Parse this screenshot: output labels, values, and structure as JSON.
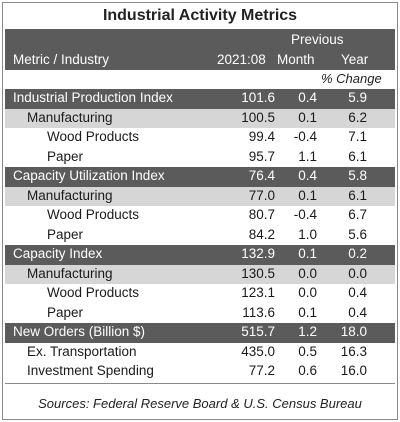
{
  "title": "Industrial Activity Metrics",
  "header": {
    "metric_label": "Metric / Industry",
    "date_label": "2021:08",
    "previous_label": "Previous",
    "month_label": "Month",
    "year_label": "Year",
    "pct_change_label": "% Change"
  },
  "rows": [
    {
      "name": "Industrial Production Index",
      "value": "101.6",
      "month": "0.4",
      "year": "5.9",
      "style": "dark",
      "indent": 0
    },
    {
      "name": "Manufacturing",
      "value": "100.5",
      "month": "0.1",
      "year": "6.2",
      "style": "shade",
      "indent": 1
    },
    {
      "name": "Wood Products",
      "value": "99.4",
      "month": "-0.4",
      "year": "7.1",
      "style": "plain",
      "indent": 2
    },
    {
      "name": "Paper",
      "value": "95.7",
      "month": "1.1",
      "year": "6.1",
      "style": "plain",
      "indent": 2
    },
    {
      "name": "Capacity Utilization Index",
      "value": "76.4",
      "month": "0.4",
      "year": "5.8",
      "style": "dark",
      "indent": 0
    },
    {
      "name": "Manufacturing",
      "value": "77.0",
      "month": "0.1",
      "year": "6.1",
      "style": "shade",
      "indent": 1
    },
    {
      "name": "Wood Products",
      "value": "80.7",
      "month": "-0.4",
      "year": "6.7",
      "style": "plain",
      "indent": 2
    },
    {
      "name": "Paper",
      "value": "84.2",
      "month": "1.0",
      "year": "5.6",
      "style": "plain",
      "indent": 2
    },
    {
      "name": "Capacity Index",
      "value": "132.9",
      "month": "0.1",
      "year": "0.2",
      "style": "dark",
      "indent": 0
    },
    {
      "name": "Manufacturing",
      "value": "130.5",
      "month": "0.0",
      "year": "0.0",
      "style": "shade",
      "indent": 1
    },
    {
      "name": "Wood Products",
      "value": "123.1",
      "month": "0.0",
      "year": "0.4",
      "style": "plain",
      "indent": 2
    },
    {
      "name": "Paper",
      "value": "113.6",
      "month": "0.1",
      "year": "0.4",
      "style": "plain",
      "indent": 2
    },
    {
      "name": "New Orders (Billion $)",
      "value": "515.7",
      "month": "1.2",
      "year": "18.0",
      "style": "dark",
      "indent": 0
    },
    {
      "name": "Ex. Transportation",
      "value": "435.0",
      "month": "0.5",
      "year": "16.3",
      "style": "plain",
      "indent": 1
    },
    {
      "name": "Investment Spending",
      "value": "77.2",
      "month": "0.6",
      "year": "16.0",
      "style": "plain",
      "indent": 1
    }
  ],
  "source": "Sources: Federal Reserve Board & U.S. Census Bureau"
}
